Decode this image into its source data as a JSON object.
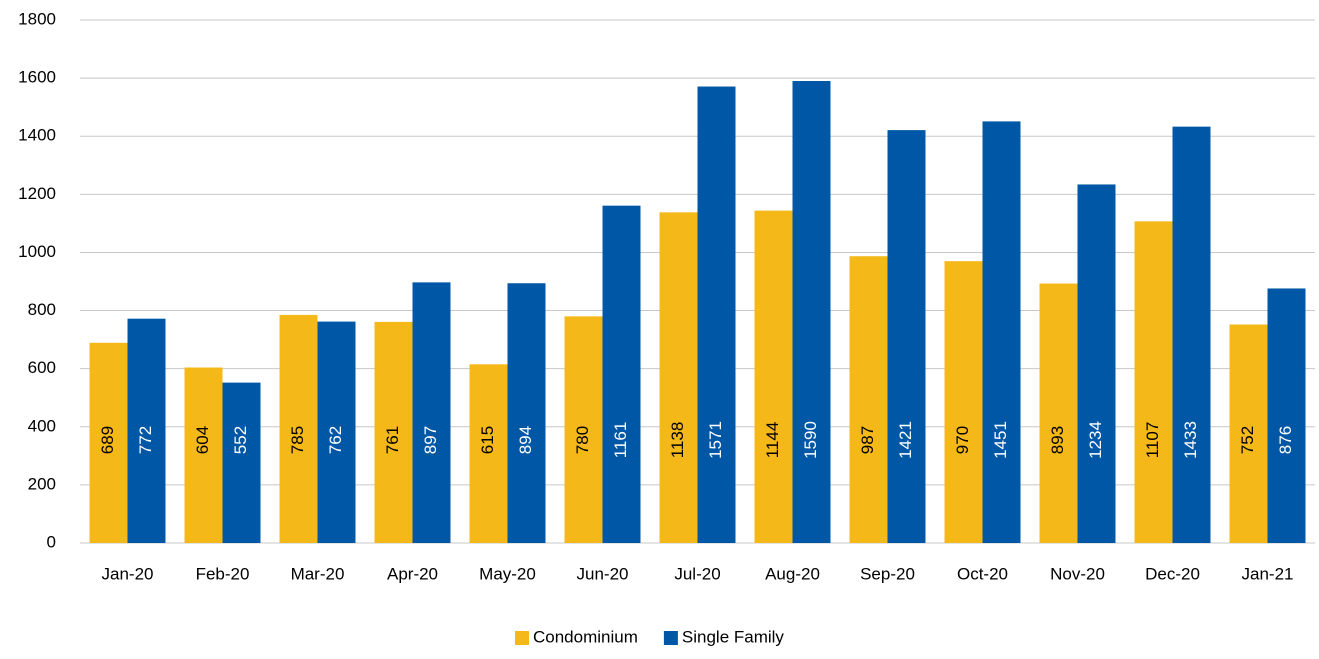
{
  "chart_data": {
    "type": "bar",
    "categories": [
      "Jan-20",
      "Feb-20",
      "Mar-20",
      "Apr-20",
      "May-20",
      "Jun-20",
      "Jul-20",
      "Aug-20",
      "Sep-20",
      "Oct-20",
      "Nov-20",
      "Dec-20",
      "Jan-21"
    ],
    "series": [
      {
        "name": "Condominium",
        "color": "#F5B819",
        "values": [
          689,
          604,
          785,
          761,
          615,
          780,
          1138,
          1144,
          987,
          970,
          893,
          1107,
          752
        ]
      },
      {
        "name": "Single Family",
        "color": "#0057A6",
        "values": [
          772,
          552,
          762,
          897,
          894,
          1161,
          1571,
          1590,
          1421,
          1451,
          1234,
          1433,
          876
        ]
      }
    ],
    "ylim": [
      0,
      1800
    ],
    "yticks": [
      0,
      200,
      400,
      600,
      800,
      1000,
      1200,
      1400,
      1600,
      1800
    ],
    "grid": true,
    "legend": "bottom",
    "data_labels": true
  }
}
